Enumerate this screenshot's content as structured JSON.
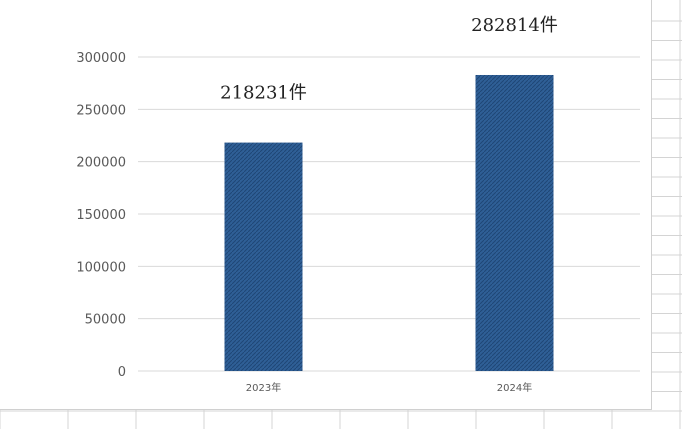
{
  "colors": {
    "bar": "#2f5f96",
    "bar_hatch": "#1f4676",
    "gridline": "#d9d9d9",
    "sheet_line": "#d4d4d4"
  },
  "chart_data": {
    "type": "bar",
    "categories": [
      "2023年",
      "2024年"
    ],
    "values": [
      218231,
      282814
    ],
    "data_labels": [
      "218231件",
      "282814件"
    ],
    "title": "",
    "xlabel": "",
    "ylabel": "",
    "ylim": [
      0,
      300000
    ],
    "yticks": [
      "300000",
      "250000",
      "200000",
      "150000",
      "100000",
      "50000",
      "0"
    ],
    "grid": true,
    "legend": "none"
  }
}
